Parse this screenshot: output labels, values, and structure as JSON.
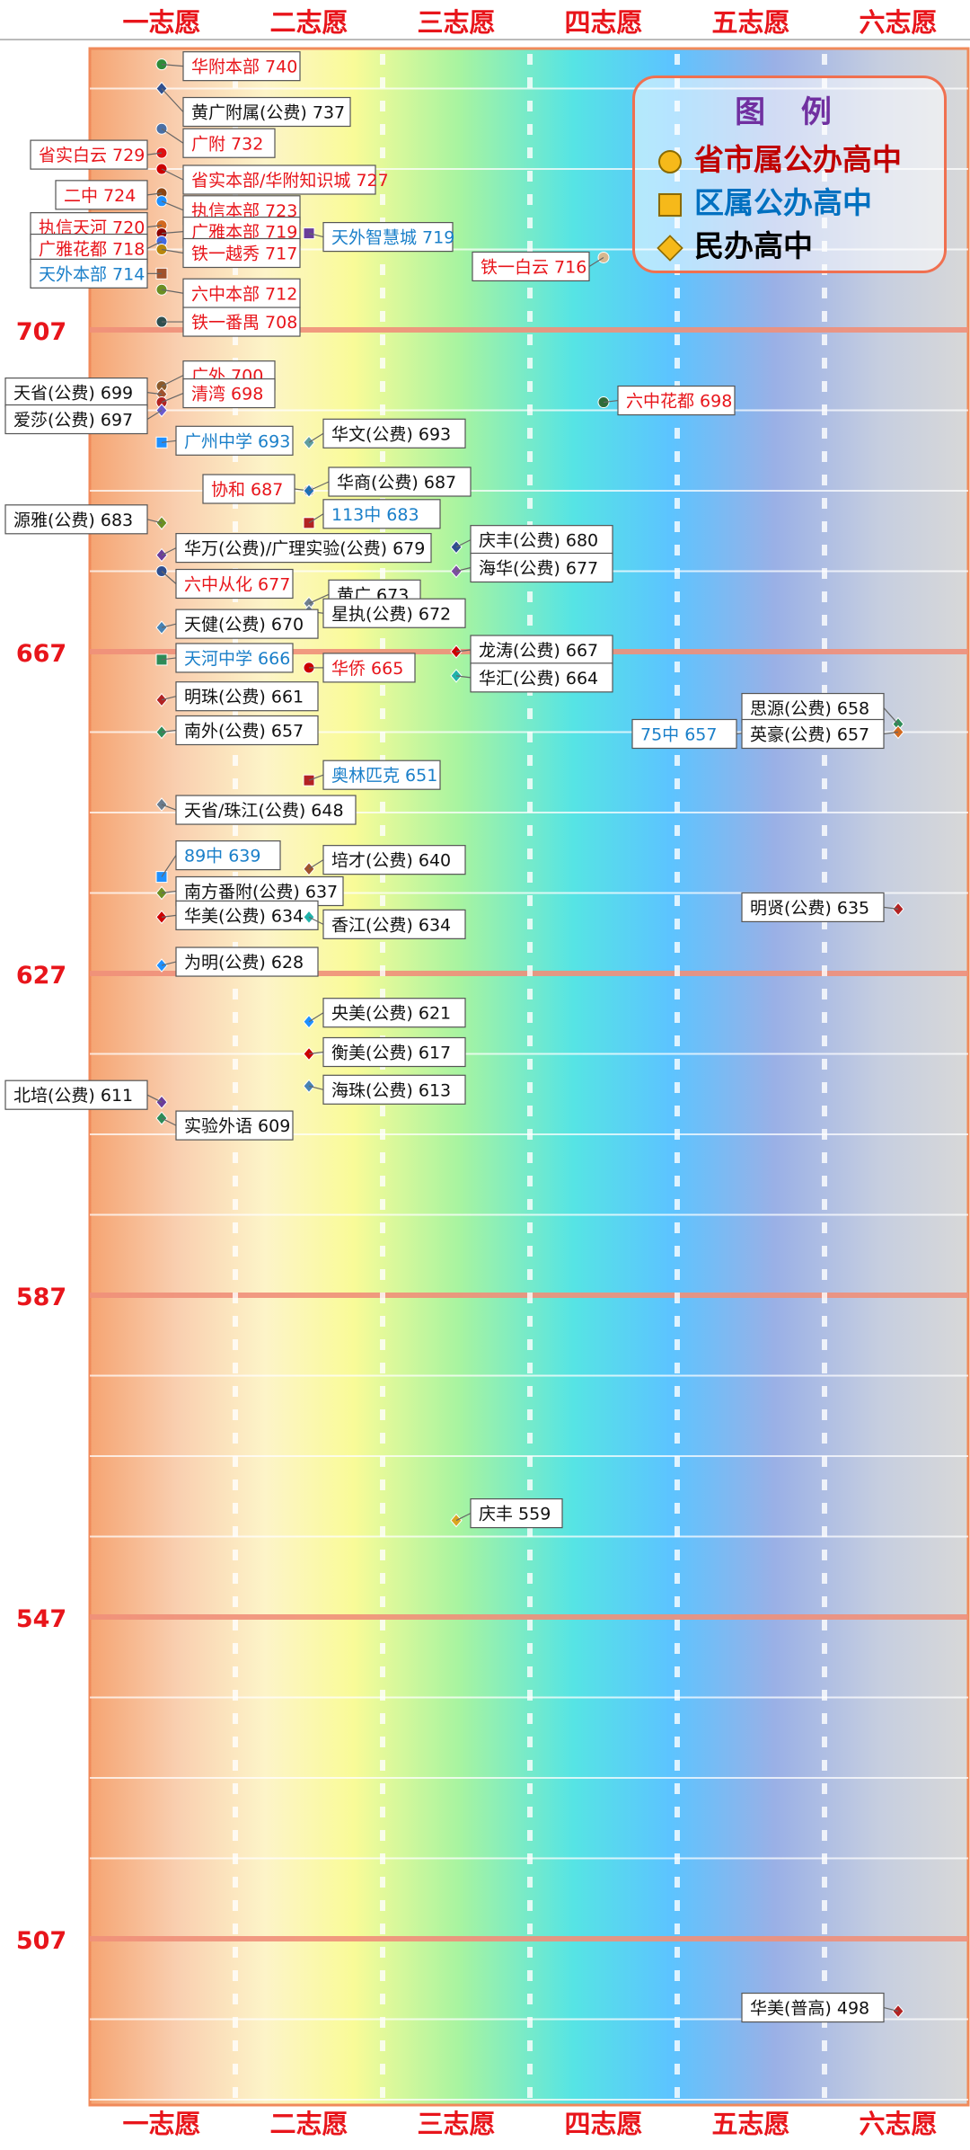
{
  "columns": [
    "一志愿",
    "二志愿",
    "三志愿",
    "四志愿",
    "五志愿",
    "六志愿"
  ],
  "legend": {
    "title": "图 例",
    "items": [
      {
        "label": "省市属公办高中",
        "shape": "circle",
        "color": "#c00000"
      },
      {
        "label": "区属公办高中",
        "shape": "square",
        "color": "#0070c0"
      },
      {
        "label": "民办高中",
        "shape": "diamond",
        "color": "#000000"
      }
    ]
  },
  "colors": {
    "provincial": "#e8151b",
    "district": "#1a7fc9",
    "private": "#111111",
    "axis_label": "#e8151b"
  },
  "chart_data": {
    "type": "scatter",
    "x_categories": [
      "一志愿",
      "二志愿",
      "三志愿",
      "四志愿",
      "五志愿",
      "六志愿"
    ],
    "y_ticks": [
      707,
      667,
      627,
      587,
      547,
      507
    ],
    "ylim": [
      487,
      747
    ],
    "points": [
      {
        "label": "华附本部 740",
        "x": 1,
        "y": 740,
        "type": "provincial",
        "marker": "#2e8b3a"
      },
      {
        "label": "黄广附属(公费) 737",
        "x": 1,
        "y": 737,
        "type": "private",
        "marker": "#2f4f8f"
      },
      {
        "label": "省实白云 729",
        "x": 1,
        "y": 729,
        "type": "provincial",
        "marker": "#d11"
      },
      {
        "label": "广附 732",
        "x": 1,
        "y": 732,
        "type": "provincial",
        "marker": "#4a6fa5"
      },
      {
        "label": "省实本部/华附知识城 727",
        "x": 1,
        "y": 727,
        "type": "provincial",
        "marker": "#c00"
      },
      {
        "label": "二中 724",
        "x": 1,
        "y": 724,
        "type": "provincial",
        "marker": "#8b4513"
      },
      {
        "label": "执信本部 723",
        "x": 1,
        "y": 723,
        "type": "provincial",
        "marker": "#1e90ff"
      },
      {
        "label": "执信天河 720",
        "x": 1,
        "y": 720,
        "type": "provincial",
        "marker": "#d2691e"
      },
      {
        "label": "广雅本部 719",
        "x": 1,
        "y": 719,
        "type": "provincial",
        "marker": "#8b0000"
      },
      {
        "label": "天外智慧城 719",
        "x": 2,
        "y": 719,
        "type": "district",
        "marker": "#6a3d9a"
      },
      {
        "label": "广雅花都 718",
        "x": 1,
        "y": 718,
        "type": "provincial",
        "marker": "#4169e1"
      },
      {
        "label": "铁一越秀 717",
        "x": 1,
        "y": 717,
        "type": "provincial",
        "marker": "#b8860b"
      },
      {
        "label": "铁一白云 716",
        "x": 4,
        "y": 716,
        "type": "provincial",
        "marker": "#d8b890"
      },
      {
        "label": "天外本部 714",
        "x": 1,
        "y": 714,
        "type": "district",
        "marker": "#a0522d"
      },
      {
        "label": "六中本部 712",
        "x": 1,
        "y": 712,
        "type": "provincial",
        "marker": "#6b8e23"
      },
      {
        "label": "铁一番禺 708",
        "x": 1,
        "y": 708,
        "type": "provincial",
        "marker": "#2f4f4f"
      },
      {
        "label": "广外 700",
        "x": 1,
        "y": 700,
        "type": "provincial",
        "marker": "#8b5a2b"
      },
      {
        "label": "天省(公费) 699",
        "x": 1,
        "y": 699,
        "type": "private",
        "marker": "#a0522d"
      },
      {
        "label": "清湾 698",
        "x": 1,
        "y": 698,
        "type": "provincial",
        "marker": "#b22222"
      },
      {
        "label": "六中花都 698",
        "x": 4,
        "y": 698,
        "type": "provincial",
        "marker": "#2e6b3a"
      },
      {
        "label": "爱莎(公费) 697",
        "x": 1,
        "y": 697,
        "type": "private",
        "marker": "#6a5acd"
      },
      {
        "label": "广州中学 693",
        "x": 1,
        "y": 693,
        "type": "district",
        "marker": "#1e90ff"
      },
      {
        "label": "华文(公费) 693",
        "x": 2,
        "y": 693,
        "type": "private",
        "marker": "#5f9ea0"
      },
      {
        "label": "协和 687",
        "x": 2,
        "y": 687,
        "type": "provincial",
        "marker": "#8b4513"
      },
      {
        "label": "华商(公费) 687",
        "x": 2,
        "y": 687,
        "type": "private",
        "marker": "#1f6fb5"
      },
      {
        "label": "源雅(公费) 683",
        "x": 1,
        "y": 683,
        "type": "private",
        "marker": "#6b8e23"
      },
      {
        "label": "113中 683",
        "x": 2,
        "y": 683,
        "type": "district",
        "marker": "#b22222"
      },
      {
        "label": "庆丰(公费) 680",
        "x": 3,
        "y": 680,
        "type": "private",
        "marker": "#2f4f8f"
      },
      {
        "label": "华万(公费)/广理实验(公费) 679",
        "x": 1,
        "y": 679,
        "type": "private",
        "marker": "#6a3d9a"
      },
      {
        "label": "海华(公费) 677",
        "x": 3,
        "y": 677,
        "type": "private",
        "marker": "#7b4fa0"
      },
      {
        "label": "六中从化 677",
        "x": 1,
        "y": 677,
        "type": "provincial",
        "marker": "#2f4f8f"
      },
      {
        "label": "黄广 673",
        "x": 2,
        "y": 673,
        "type": "private",
        "marker": "#708090"
      },
      {
        "label": "星执(公费) 672",
        "x": 2,
        "y": 672,
        "type": "private",
        "marker": "#708090"
      },
      {
        "label": "天健(公费) 670",
        "x": 1,
        "y": 670,
        "type": "private",
        "marker": "#4682b4"
      },
      {
        "label": "龙涛(公费) 667",
        "x": 3,
        "y": 667,
        "type": "private",
        "marker": "#c00"
      },
      {
        "label": "天河中学 666",
        "x": 1,
        "y": 666,
        "type": "district",
        "marker": "#2e8b57"
      },
      {
        "label": "华侨 665",
        "x": 2,
        "y": 665,
        "type": "provincial",
        "marker": "#c00"
      },
      {
        "label": "华汇(公费) 664",
        "x": 3,
        "y": 664,
        "type": "private",
        "marker": "#20b2aa"
      },
      {
        "label": "明珠(公费) 661",
        "x": 1,
        "y": 661,
        "type": "private",
        "marker": "#b22222"
      },
      {
        "label": "思源(公费) 658",
        "x": 6,
        "y": 658,
        "type": "private",
        "marker": "#2e8b57"
      },
      {
        "label": "75中 657",
        "x": 5,
        "y": 657,
        "type": "district",
        "marker": "#1a2a6b"
      },
      {
        "label": "英豪(公费) 657",
        "x": 6,
        "y": 657,
        "type": "private",
        "marker": "#d2691e"
      },
      {
        "label": "南外(公费) 657",
        "x": 1,
        "y": 657,
        "type": "private",
        "marker": "#2e8b57"
      },
      {
        "label": "奥林匹克 651",
        "x": 2,
        "y": 651,
        "type": "district",
        "marker": "#b22222"
      },
      {
        "label": "天省/珠江(公费) 648",
        "x": 1,
        "y": 648,
        "type": "private",
        "marker": "#6b7b8c"
      },
      {
        "label": "培才(公费) 640",
        "x": 2,
        "y": 640,
        "type": "private",
        "marker": "#a0522d"
      },
      {
        "label": "89中 639",
        "x": 1,
        "y": 639,
        "type": "district",
        "marker": "#1e90ff"
      },
      {
        "label": "南方番附(公费) 637",
        "x": 1,
        "y": 637,
        "type": "private",
        "marker": "#6b8e23"
      },
      {
        "label": "明贤(公费) 635",
        "x": 6,
        "y": 635,
        "type": "private",
        "marker": "#b22222"
      },
      {
        "label": "华美(公费) 634",
        "x": 1,
        "y": 634,
        "type": "private",
        "marker": "#c00"
      },
      {
        "label": "香江(公费) 634",
        "x": 2,
        "y": 634,
        "type": "private",
        "marker": "#20b2aa"
      },
      {
        "label": "为明(公费) 628",
        "x": 1,
        "y": 628,
        "type": "private",
        "marker": "#1e90ff"
      },
      {
        "label": "央美(公费) 621",
        "x": 2,
        "y": 621,
        "type": "private",
        "marker": "#1e90ff"
      },
      {
        "label": "衡美(公费) 617",
        "x": 2,
        "y": 617,
        "type": "private",
        "marker": "#c00"
      },
      {
        "label": "海珠(公费) 613",
        "x": 2,
        "y": 613,
        "type": "private",
        "marker": "#4682b4"
      },
      {
        "label": "北培(公费) 611",
        "x": 1,
        "y": 611,
        "type": "private",
        "marker": "#6a3d9a"
      },
      {
        "label": "实验外语 609",
        "x": 1,
        "y": 609,
        "type": "private",
        "marker": "#2e8b57"
      },
      {
        "label": "庆丰 559",
        "x": 3,
        "y": 559,
        "type": "private",
        "marker": "#daa520"
      },
      {
        "label": "华美(普高) 498",
        "x": 6,
        "y": 498,
        "type": "private",
        "marker": "#b22222"
      }
    ]
  }
}
